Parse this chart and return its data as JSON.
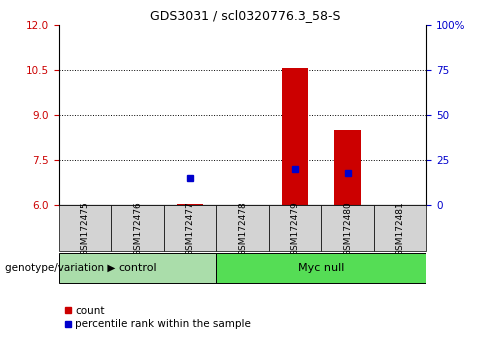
{
  "title": "GDS3031 / scl0320776.3_58-S",
  "samples": [
    "GSM172475",
    "GSM172476",
    "GSM172477",
    "GSM172478",
    "GSM172479",
    "GSM172480",
    "GSM172481"
  ],
  "red_bars": [
    null,
    null,
    6.05,
    null,
    10.58,
    8.5,
    null
  ],
  "blue_squares_pct": [
    null,
    null,
    15.0,
    null,
    20.0,
    18.0,
    null
  ],
  "ylim_left": [
    6,
    12
  ],
  "yticks_left": [
    6,
    7.5,
    9,
    10.5,
    12
  ],
  "ylim_right": [
    0,
    100
  ],
  "yticks_right": [
    0,
    25,
    50,
    75,
    100
  ],
  "ytick_labels_right": [
    "0",
    "25",
    "50",
    "75",
    "100%"
  ],
  "bar_width": 0.5,
  "red_color": "#CC0000",
  "blue_color": "#0000CC",
  "bar_base": 6.0,
  "legend_count": "count",
  "legend_percentile": "percentile rank within the sample",
  "tick_color_left": "#CC0000",
  "tick_color_right": "#0000CC",
  "label_box_color": "#d3d3d3",
  "control_color": "#aaddaa",
  "mycnull_color": "#55dd55",
  "control_samples_n": 3,
  "mycnull_samples_n": 4
}
